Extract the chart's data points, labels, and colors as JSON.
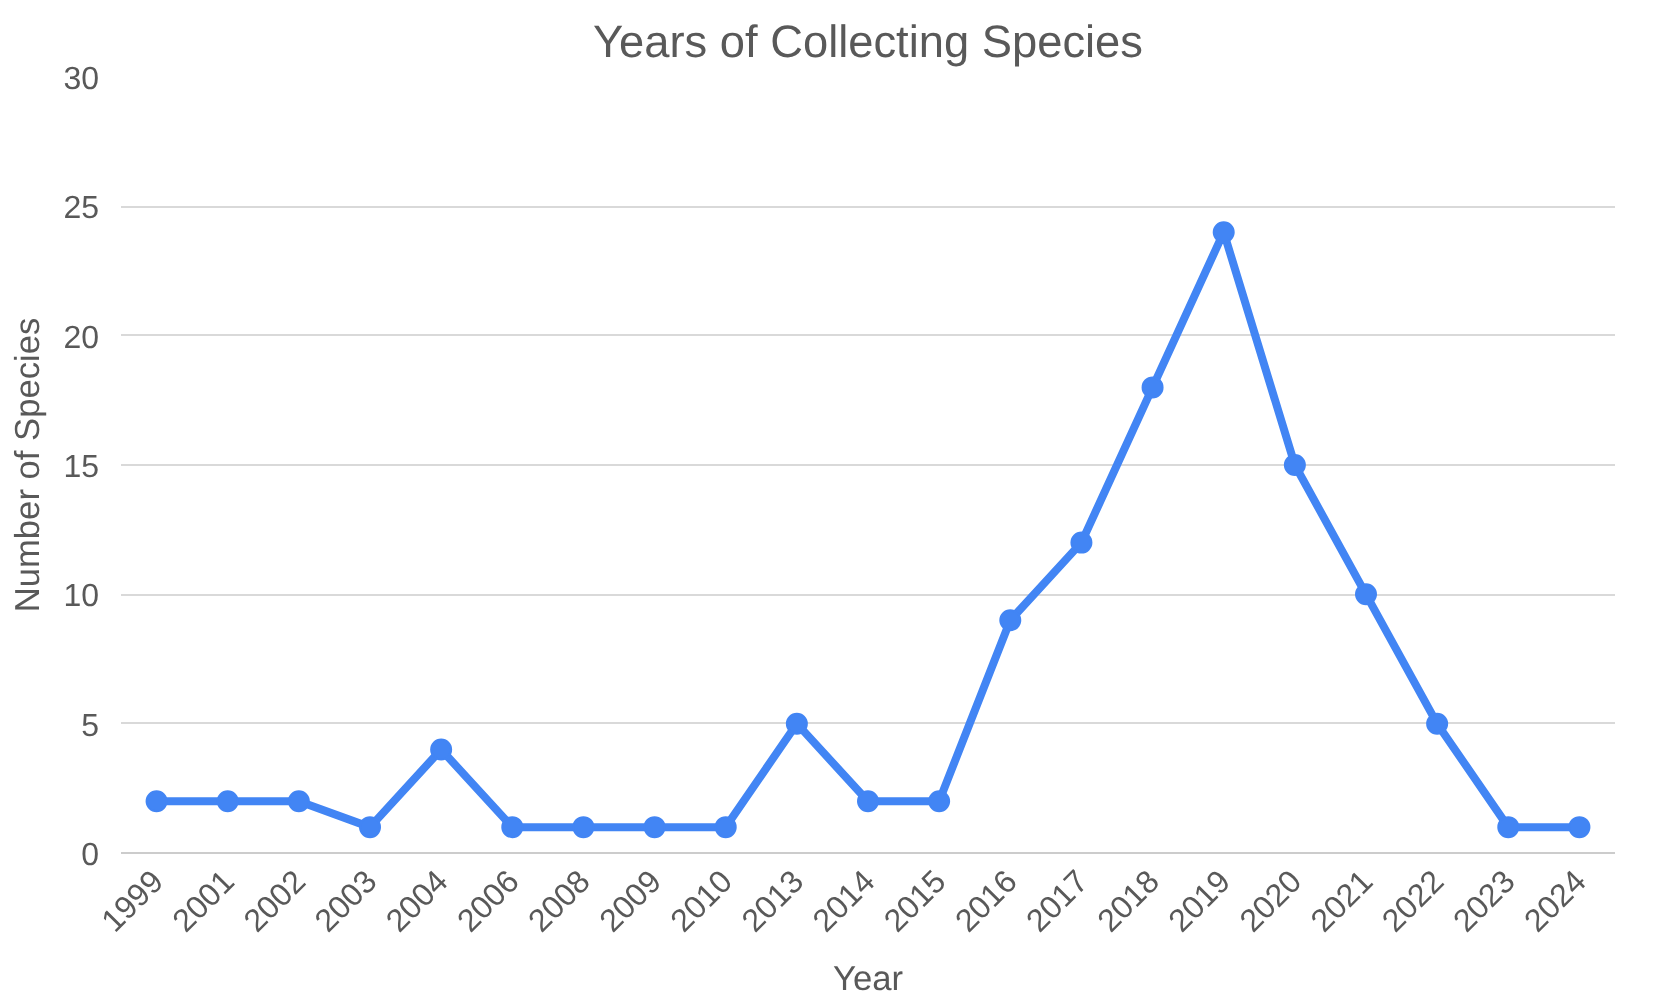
{
  "chart_data": {
    "type": "line",
    "title": "Years of Collecting Species",
    "xlabel": "Year",
    "ylabel": "Number of Species",
    "categories": [
      "1999",
      "2001",
      "2002",
      "2003",
      "2004",
      "2006",
      "2008",
      "2009",
      "2010",
      "2013",
      "2014",
      "2015",
      "2016",
      "2017",
      "2018",
      "2019",
      "2020",
      "2021",
      "2022",
      "2023",
      "2024"
    ],
    "series": [
      {
        "color": "#4285f4",
        "values": [
          2,
          2,
          2,
          1,
          4,
          1,
          1,
          1,
          1,
          5,
          2,
          2,
          9,
          12,
          18,
          24,
          15,
          10,
          5,
          1,
          1
        ]
      }
    ],
    "ylim": [
      0,
      30
    ],
    "yticks": [
      0,
      5,
      10,
      15,
      20,
      25,
      30
    ],
    "grid": "y",
    "marker": "circle",
    "line_style": "solid"
  }
}
